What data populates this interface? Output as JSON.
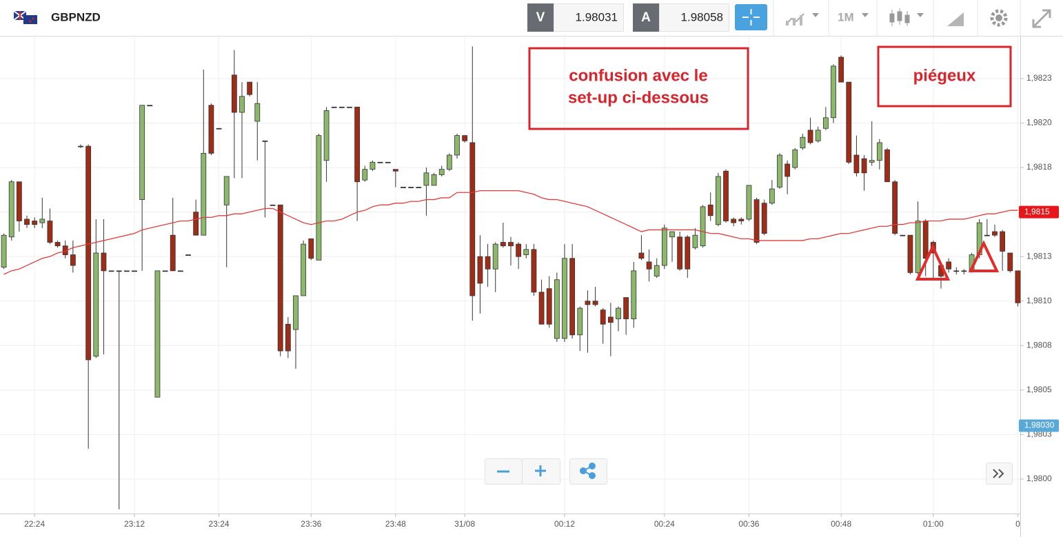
{
  "header": {
    "symbol": "GBPNZD",
    "bid_label": "V",
    "bid": "1.98031",
    "ask_label": "A",
    "ask": "1.98058",
    "timeframe": "1M"
  },
  "chart_data": {
    "type": "candlestick",
    "categories": [
      null,
      null,
      null,
      null,
      "22:24",
      null,
      null,
      null,
      null,
      null,
      null,
      null,
      null,
      null,
      null,
      null,
      null,
      "23:12",
      null,
      null,
      null,
      null,
      null,
      null,
      null,
      null,
      null,
      null,
      "23:24",
      null,
      null,
      null,
      null,
      null,
      null,
      null,
      null,
      null,
      null,
      null,
      "23:36",
      null,
      null,
      null,
      null,
      null,
      null,
      null,
      null,
      null,
      null,
      "23:48",
      null,
      null,
      null,
      null,
      null,
      null,
      null,
      null,
      "31/08",
      null,
      null,
      null,
      null,
      null,
      null,
      null,
      null,
      null,
      null,
      null,
      null,
      "00:12",
      null,
      null,
      null,
      null,
      null,
      null,
      null,
      null,
      null,
      null,
      null,
      null,
      "00:24",
      null,
      null,
      null,
      null,
      null,
      null,
      null,
      null,
      null,
      null,
      "00:36",
      null,
      null,
      null,
      null,
      null,
      null,
      null,
      null,
      null,
      null,
      null,
      "00:48",
      null,
      null,
      null,
      null,
      null,
      null,
      null,
      null,
      null,
      null,
      null,
      "01:00",
      null,
      null,
      null,
      null,
      null,
      null,
      null,
      null,
      null,
      null,
      "0"
    ],
    "open": [
      1.98119,
      1.98136,
      1.98167,
      1.98146,
      1.98145,
      1.98144,
      1.98145,
      1.98133,
      1.98131,
      1.98126,
      1.98187,
      1.98187,
      1.98069,
      1.98127,
      1.98117,
      1.98117,
      1.98117,
      1.98117,
      1.98157,
      1.9821,
      1.98046,
      1.98117,
      1.98137,
      1.98117,
      1.98126,
      1.9815,
      1.98137,
      1.9821,
      1.98197,
      1.98154,
      1.98227,
      1.98206,
      1.98223,
      1.98201,
      1.9819,
      1.98154,
      1.98154,
      1.98087,
      1.98084,
      1.98103,
      1.98135,
      1.98123,
      1.98179,
      1.98209,
      1.98209,
      1.98209,
      1.98209,
      1.98168,
      1.98174,
      1.98178,
      1.98178,
      1.98174,
      1.98164,
      1.98164,
      1.98164,
      1.98165,
      1.98165,
      1.98171,
      1.98174,
      1.98182,
      1.98193,
      1.98189,
      1.98125,
      1.98125,
      1.98118,
      1.98133,
      1.98133,
      1.98132,
      1.98126,
      1.98129,
      1.98105,
      1.98107,
      1.98079,
      1.98079,
      1.98124,
      1.98081,
      1.981,
      1.981,
      1.98095,
      1.98091,
      1.9809,
      1.98102,
      1.9809,
      1.98127,
      1.98122,
      1.98114,
      1.9812,
      1.98136,
      1.98136,
      1.98136,
      1.9813,
      1.98131,
      1.98154,
      1.98143,
      1.98173,
      1.98146,
      1.98146,
      1.98146,
      1.98157,
      1.98155,
      1.98155,
      1.98164,
      1.98177,
      1.98175,
      1.98186,
      1.98196,
      1.9819,
      1.98197,
      1.98203,
      1.98237,
      1.98223,
      1.98182,
      1.9818,
      1.98178,
      1.98179,
      1.98185,
      1.98167,
      1.98137,
      1.98137,
      1.98116,
      1.98145,
      1.98133,
      1.9812,
      1.98122,
      1.98117,
      1.98117,
      1.98117,
      1.98126,
      1.98137,
      1.98139,
      1.98139,
      1.98127,
      1.98117
    ],
    "high": [
      1.98138,
      1.98168,
      1.98167,
      1.98148,
      1.98147,
      1.98158,
      1.98152,
      1.98134,
      1.98134,
      1.98134,
      1.98188,
      1.98188,
      1.98146,
      1.98146,
      1.98117,
      1.98117,
      1.98117,
      1.98117,
      1.9821,
      1.9821,
      1.98117,
      1.98117,
      1.98158,
      1.98117,
      1.98126,
      1.98157,
      1.9823,
      1.98211,
      1.98197,
      1.9817,
      1.98241,
      1.98223,
      1.98223,
      1.98223,
      1.9819,
      1.98154,
      1.98154,
      1.98091,
      1.98103,
      1.98134,
      1.98135,
      1.98194,
      1.98209,
      1.98209,
      1.98209,
      1.98209,
      1.98209,
      1.98176,
      1.98179,
      1.98178,
      1.98178,
      1.98174,
      1.98164,
      1.98164,
      1.98164,
      1.98175,
      1.98172,
      1.98176,
      1.98183,
      1.98194,
      1.98193,
      1.98243,
      1.98137,
      1.98132,
      1.98133,
      1.98144,
      1.98136,
      1.98133,
      1.98132,
      1.98132,
      1.98112,
      1.98114,
      1.98116,
      1.98132,
      1.98132,
      1.98097,
      1.98106,
      1.98108,
      1.98096,
      1.98099,
      1.98097,
      1.98102,
      1.98122,
      1.98137,
      1.98129,
      1.98124,
      1.98143,
      1.98139,
      1.98139,
      1.98137,
      1.98141,
      1.98154,
      1.98161,
      1.98172,
      1.98174,
      1.98147,
      1.98147,
      1.98165,
      1.98158,
      1.98157,
      1.98168,
      1.98183,
      1.98179,
      1.98186,
      1.98194,
      1.98203,
      1.98198,
      1.98209,
      1.98233,
      1.98238,
      1.98223,
      1.98193,
      1.98182,
      1.98201,
      1.98191,
      1.98186,
      1.98168,
      1.98137,
      1.98137,
      1.98156,
      1.98146,
      1.98134,
      1.98122,
      1.98124,
      1.98119,
      1.98118,
      1.98127,
      1.98146,
      1.98146,
      1.98143,
      1.9814,
      1.98127,
      1.98117
    ],
    "low": [
      1.98118,
      1.98134,
      1.98139,
      1.98141,
      1.98141,
      1.98141,
      1.98132,
      1.9813,
      1.98124,
      1.98116,
      1.98186,
      1.98017,
      1.98068,
      1.9807,
      1.98117,
      1.97983,
      1.98117,
      1.98117,
      1.98117,
      1.9821,
      1.98046,
      1.98117,
      1.98117,
      1.98117,
      1.98126,
      1.98137,
      1.98137,
      1.98182,
      1.98197,
      1.98119,
      1.98169,
      1.98169,
      1.98215,
      1.98179,
      1.98147,
      1.98154,
      1.98069,
      1.98068,
      1.98062,
      1.98103,
      1.98123,
      1.98123,
      1.98167,
      1.98209,
      1.98209,
      1.98209,
      1.98145,
      1.98167,
      1.98173,
      1.98178,
      1.98178,
      1.98164,
      1.98164,
      1.98164,
      1.98164,
      1.98148,
      1.98165,
      1.9817,
      1.98173,
      1.9818,
      1.98189,
      1.98089,
      1.98093,
      1.98108,
      1.98105,
      1.9813,
      1.9812,
      1.98118,
      1.98124,
      1.98103,
      1.98087,
      1.98085,
      1.98077,
      1.98077,
      1.98079,
      1.98072,
      1.98071,
      1.98097,
      1.98076,
      1.98069,
      1.98083,
      1.98081,
      1.98085,
      1.98123,
      1.98111,
      1.98113,
      1.98118,
      1.98122,
      1.98117,
      1.98113,
      1.98129,
      1.9813,
      1.98145,
      1.98142,
      1.98144,
      1.98142,
      1.98143,
      1.98145,
      1.98132,
      1.98137,
      1.98154,
      1.98163,
      1.9816,
      1.98174,
      1.98185,
      1.98188,
      1.98189,
      1.98196,
      1.982,
      1.98223,
      1.98177,
      1.9817,
      1.98162,
      1.98176,
      1.98174,
      1.98167,
      1.98137,
      1.98137,
      1.98115,
      1.98115,
      1.98114,
      1.98112,
      1.98107,
      1.98116,
      1.98115,
      1.98115,
      1.98116,
      1.98124,
      1.98137,
      1.98136,
      1.98117,
      1.98116,
      1.98097
    ],
    "close": [
      1.98137,
      1.98167,
      1.98145,
      1.98143,
      1.98143,
      1.98146,
      1.98133,
      1.98131,
      1.98126,
      1.9812,
      1.98187,
      1.98067,
      1.98127,
      1.98117,
      1.98117,
      1.98117,
      1.98117,
      1.98117,
      1.9821,
      1.9821,
      1.98117,
      1.98117,
      1.98117,
      1.98117,
      1.98126,
      1.98137,
      1.98183,
      1.98183,
      1.98197,
      1.9817,
      1.98206,
      1.98215,
      1.98216,
      1.98211,
      1.9819,
      1.98154,
      1.98072,
      1.98072,
      1.98103,
      1.98132,
      1.98124,
      1.98193,
      1.98207,
      1.98209,
      1.98209,
      1.98209,
      1.98167,
      1.98174,
      1.98178,
      1.98178,
      1.98178,
      1.98173,
      1.98164,
      1.98164,
      1.98164,
      1.98172,
      1.98171,
      1.98174,
      1.98182,
      1.98193,
      1.9819,
      1.98103,
      1.9811,
      1.98118,
      1.98132,
      1.98131,
      1.98131,
      1.98125,
      1.98129,
      1.98105,
      1.98087,
      1.98087,
      1.98112,
      1.98124,
      1.98081,
      1.98096,
      1.98098,
      1.98098,
      1.98087,
      1.98088,
      1.98096,
      1.9809,
      1.98117,
      1.98124,
      1.98118,
      1.9812,
      1.98141,
      1.98139,
      1.98118,
      1.98118,
      1.98137,
      1.98153,
      1.98148,
      1.9817,
      1.98145,
      1.98144,
      1.98145,
      1.98165,
      1.98133,
      1.98138,
      1.98163,
      1.98182,
      1.9817,
      1.98185,
      1.98192,
      1.98189,
      1.98196,
      1.98203,
      1.98232,
      1.98223,
      1.98178,
      1.98172,
      1.98172,
      1.98179,
      1.98189,
      1.98167,
      1.98138,
      1.98137,
      1.98116,
      1.98145,
      1.98124,
      1.98127,
      1.98114,
      1.98118,
      1.98117,
      1.98117,
      1.98126,
      1.98144,
      1.98137,
      1.98137,
      1.98128,
      1.98117,
      1.98099
    ],
    "up_color": "#8cb86c",
    "down_color": "#9e2c16",
    "flat_color": "#333333",
    "moving_average": {
      "color": "#e03c3c",
      "values": [
        1.98115,
        1.98117,
        1.98118,
        1.9812,
        1.98122,
        1.98124,
        1.98125,
        1.98127,
        1.98128,
        1.9813,
        1.98131,
        1.98132,
        1.98133,
        1.98134,
        1.98135,
        1.98136,
        1.98137,
        1.98138,
        1.9814,
        1.98141,
        1.98142,
        1.98143,
        1.98144,
        1.98145,
        1.98145,
        1.98146,
        1.98147,
        1.98147,
        1.98148,
        1.98148,
        1.98149,
        1.98149,
        1.9815,
        1.98151,
        1.98152,
        1.98152,
        1.9815,
        1.98148,
        1.98146,
        1.98144,
        1.98143,
        1.98144,
        1.98145,
        1.98145,
        1.98146,
        1.98148,
        1.9815,
        1.98151,
        1.98153,
        1.98154,
        1.98154,
        1.98155,
        1.98155,
        1.98156,
        1.98156,
        1.98157,
        1.98157,
        1.98158,
        1.98158,
        1.98161,
        1.98161,
        1.98161,
        1.98162,
        1.98162,
        1.98162,
        1.98162,
        1.98162,
        1.98162,
        1.98161,
        1.9816,
        1.98158,
        1.98157,
        1.98157,
        1.98156,
        1.98155,
        1.98154,
        1.98153,
        1.98151,
        1.98149,
        1.98147,
        1.98145,
        1.98143,
        1.98141,
        1.98139,
        1.9814,
        1.9814,
        1.9814,
        1.9814,
        1.9814,
        1.9814,
        1.9814,
        1.98139,
        1.98138,
        1.98138,
        1.98137,
        1.98136,
        1.98135,
        1.98135,
        1.98134,
        1.98134,
        1.98134,
        1.98134,
        1.98134,
        1.98134,
        1.98134,
        1.98135,
        1.98135,
        1.98136,
        1.98137,
        1.98138,
        1.98138,
        1.98139,
        1.9814,
        1.98141,
        1.98142,
        1.98142,
        1.98143,
        1.98143,
        1.98144,
        1.98144,
        1.98145,
        1.98145,
        1.98145,
        1.98146,
        1.98146,
        1.98146,
        1.98147,
        1.98148,
        1.98149,
        1.98149,
        1.9815,
        1.98151,
        1.98151
      ]
    },
    "ylim": [
      1.9798,
      1.9825
    ],
    "yticks": [
      {
        "value": 1.98225,
        "label": "1,9823"
      },
      {
        "value": 1.982,
        "label": "1,9820"
      },
      {
        "value": 1.98175,
        "label": "1,9818"
      },
      {
        "value": 1.9815,
        "label": "1,9815"
      },
      {
        "value": 1.98125,
        "label": "1,9813"
      },
      {
        "value": 1.981,
        "label": "1,9810"
      },
      {
        "value": 1.98075,
        "label": "1,9808"
      },
      {
        "value": 1.9805,
        "label": "1,9805"
      },
      {
        "value": 1.98025,
        "label": "1,9803"
      },
      {
        "value": 1.98,
        "label": "1,9800"
      }
    ],
    "price_tags": [
      {
        "value": 1.9815,
        "label": "1,9815",
        "color": "#e8161b"
      },
      {
        "value": 1.9803,
        "label": "1,98030",
        "color": "#59a9d8"
      }
    ],
    "grid": true,
    "annotations": [
      {
        "lines": [
          "confusion avec le",
          "set-up ci-dessous"
        ]
      },
      {
        "lines": [
          "piégeux"
        ]
      }
    ]
  }
}
